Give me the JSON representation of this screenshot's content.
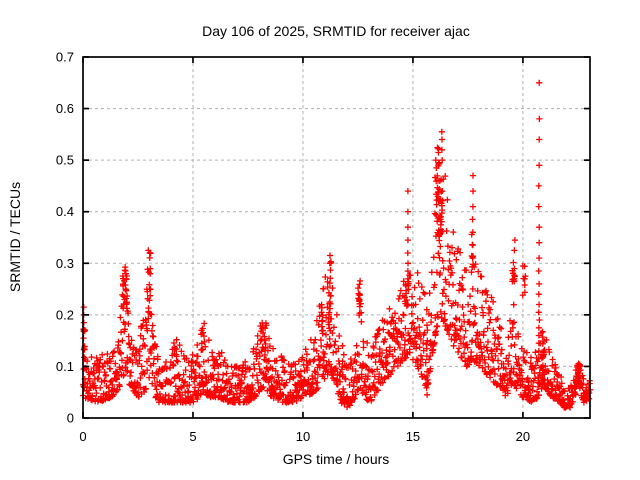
{
  "chart_data": {
    "type": "scatter",
    "title": "Day 106 of 2025, SRMTID for receiver ajac",
    "xlabel": "GPS time / hours",
    "ylabel": "SRMTID / TECUs",
    "xlim": [
      0,
      23.05
    ],
    "ylim": [
      0,
      0.7
    ],
    "xticks": {
      "values": [
        0,
        5,
        10,
        15,
        20
      ],
      "labels": [
        "0",
        "5",
        "10",
        "15",
        "20"
      ]
    },
    "yticks": {
      "values": [
        0,
        0.1,
        0.2,
        0.3,
        0.4,
        0.5,
        0.6,
        0.7
      ],
      "labels": [
        "0",
        "0.1",
        "0.2",
        "0.3",
        "0.4",
        "0.5",
        "0.6",
        "0.7"
      ]
    },
    "grid": {
      "show": true,
      "color": "#b0b0b0",
      "dash": "3,3"
    },
    "border_color": "#000000",
    "marker": {
      "glyph": "plus",
      "color": "#ff0000",
      "size": 3.1,
      "stroke_width": 1.3
    },
    "sampling": {
      "seed": 2025106,
      "dt_hours": 0.0125,
      "x_jitter": 0.01,
      "skew": 1.8
    },
    "band_envelope": [
      [
        0.0,
        0.04,
        0.13
      ],
      [
        0.7,
        0.03,
        0.12
      ],
      [
        1.3,
        0.04,
        0.13
      ],
      [
        1.6,
        0.05,
        0.16
      ],
      [
        1.8,
        0.08,
        0.28
      ],
      [
        2.0,
        0.09,
        0.3
      ],
      [
        2.15,
        0.06,
        0.2
      ],
      [
        2.5,
        0.04,
        0.15
      ],
      [
        2.8,
        0.05,
        0.22
      ],
      [
        3.0,
        0.07,
        0.3
      ],
      [
        3.15,
        0.05,
        0.2
      ],
      [
        3.4,
        0.03,
        0.12
      ],
      [
        4.0,
        0.03,
        0.13
      ],
      [
        4.35,
        0.03,
        0.15
      ],
      [
        4.7,
        0.03,
        0.12
      ],
      [
        5.1,
        0.03,
        0.13
      ],
      [
        5.45,
        0.05,
        0.18
      ],
      [
        5.8,
        0.04,
        0.15
      ],
      [
        6.2,
        0.04,
        0.14
      ],
      [
        6.6,
        0.03,
        0.1
      ],
      [
        7.1,
        0.03,
        0.1
      ],
      [
        7.6,
        0.03,
        0.12
      ],
      [
        8.0,
        0.05,
        0.18
      ],
      [
        8.25,
        0.06,
        0.21
      ],
      [
        8.6,
        0.04,
        0.14
      ],
      [
        9.1,
        0.03,
        0.12
      ],
      [
        9.6,
        0.03,
        0.11
      ],
      [
        10.1,
        0.04,
        0.14
      ],
      [
        10.55,
        0.05,
        0.18
      ],
      [
        10.9,
        0.07,
        0.26
      ],
      [
        11.2,
        0.09,
        0.3
      ],
      [
        11.45,
        0.07,
        0.25
      ],
      [
        11.7,
        0.03,
        0.15
      ],
      [
        12.0,
        0.02,
        0.1
      ],
      [
        12.3,
        0.03,
        0.13
      ],
      [
        12.55,
        0.06,
        0.26
      ],
      [
        12.8,
        0.04,
        0.17
      ],
      [
        13.05,
        0.03,
        0.12
      ],
      [
        13.35,
        0.05,
        0.17
      ],
      [
        13.7,
        0.07,
        0.2
      ],
      [
        14.1,
        0.09,
        0.22
      ],
      [
        14.5,
        0.11,
        0.26
      ],
      [
        14.8,
        0.12,
        0.3
      ],
      [
        15.1,
        0.11,
        0.29
      ],
      [
        15.4,
        0.08,
        0.27
      ],
      [
        15.65,
        0.05,
        0.24
      ],
      [
        15.9,
        0.13,
        0.4
      ],
      [
        16.1,
        0.17,
        0.48
      ],
      [
        16.3,
        0.19,
        0.52
      ],
      [
        16.55,
        0.17,
        0.46
      ],
      [
        16.85,
        0.14,
        0.38
      ],
      [
        17.15,
        0.12,
        0.33
      ],
      [
        17.45,
        0.1,
        0.29
      ],
      [
        17.75,
        0.11,
        0.33
      ],
      [
        18.05,
        0.1,
        0.28
      ],
      [
        18.45,
        0.08,
        0.25
      ],
      [
        18.85,
        0.06,
        0.2
      ],
      [
        19.25,
        0.04,
        0.14
      ],
      [
        19.55,
        0.07,
        0.25
      ],
      [
        19.9,
        0.04,
        0.16
      ],
      [
        20.1,
        0.04,
        0.14
      ],
      [
        20.4,
        0.03,
        0.12
      ],
      [
        20.7,
        0.04,
        0.14
      ],
      [
        21.0,
        0.06,
        0.16
      ],
      [
        21.3,
        0.04,
        0.12
      ],
      [
        21.6,
        0.03,
        0.09
      ],
      [
        21.9,
        0.02,
        0.07
      ],
      [
        22.15,
        0.02,
        0.06
      ],
      [
        22.35,
        0.04,
        0.09
      ],
      [
        22.55,
        0.06,
        0.11
      ],
      [
        22.75,
        0.03,
        0.08
      ],
      [
        22.95,
        0.03,
        0.07
      ],
      [
        23.05,
        0.04,
        0.09
      ]
    ],
    "clusters": [
      [
        0.05,
        0.13,
        0.22,
        9,
        0.1
      ],
      [
        1.9,
        0.22,
        0.3,
        22,
        0.22
      ],
      [
        2.98,
        0.2,
        0.29,
        10,
        0.18
      ],
      [
        3.05,
        0.29,
        0.325,
        3,
        0.06
      ],
      [
        4.2,
        0.12,
        0.155,
        6,
        0.18
      ],
      [
        5.45,
        0.13,
        0.185,
        9,
        0.18
      ],
      [
        8.2,
        0.13,
        0.2,
        14,
        0.28
      ],
      [
        10.9,
        0.15,
        0.26,
        10,
        0.1
      ],
      [
        11.2,
        0.18,
        0.28,
        16,
        0.18
      ],
      [
        11.28,
        0.285,
        0.315,
        3,
        0.06
      ],
      [
        12.55,
        0.17,
        0.27,
        12,
        0.1
      ],
      [
        14.7,
        0.2,
        0.28,
        12,
        0.22
      ],
      [
        16.2,
        0.34,
        0.47,
        34,
        0.4
      ],
      [
        16.15,
        0.47,
        0.53,
        7,
        0.14
      ],
      [
        17.7,
        0.28,
        0.4,
        7,
        0.08
      ],
      [
        19.58,
        0.26,
        0.305,
        12,
        0.12
      ],
      [
        20.05,
        0.22,
        0.295,
        8,
        0.12
      ],
      [
        20.9,
        0.06,
        0.17,
        14,
        0.18
      ],
      [
        22.48,
        0.06,
        0.1,
        12,
        0.16
      ]
    ],
    "spike_columns": [
      {
        "h": 0.02,
        "ys": [
          0.215,
          0.2,
          0.185,
          0.17,
          0.155
        ]
      },
      {
        "h": 2.97,
        "ys": [
          0.325
        ]
      },
      {
        "h": 11.22,
        "ys": [
          0.315,
          0.3
        ]
      },
      {
        "h": 11.8,
        "ys": [
          0.14,
          0.11,
          0.08,
          0.05,
          0.035
        ]
      },
      {
        "h": 14.78,
        "ys": [
          0.44,
          0.4,
          0.37,
          0.345,
          0.32,
          0.3
        ]
      },
      {
        "h": 15.65,
        "ys": [
          0.21,
          0.18,
          0.15,
          0.12,
          0.09,
          0.065,
          0.045
        ]
      },
      {
        "h": 16.05,
        "ys": [
          0.5,
          0.485
        ]
      },
      {
        "h": 16.33,
        "ys": [
          0.555,
          0.54,
          0.52,
          0.5
        ]
      },
      {
        "h": 17.72,
        "ys": [
          0.47,
          0.44,
          0.41,
          0.385,
          0.36,
          0.335,
          0.31
        ]
      },
      {
        "h": 19.63,
        "ys": [
          0.345,
          0.325
        ]
      },
      {
        "h": 20.73,
        "ys": [
          0.65,
          0.58,
          0.54,
          0.49,
          0.45,
          0.41,
          0.37,
          0.34,
          0.31,
          0.285,
          0.26,
          0.24,
          0.22,
          0.205,
          0.19,
          0.175,
          0.16,
          0.145,
          0.13,
          0.115
        ]
      }
    ]
  }
}
